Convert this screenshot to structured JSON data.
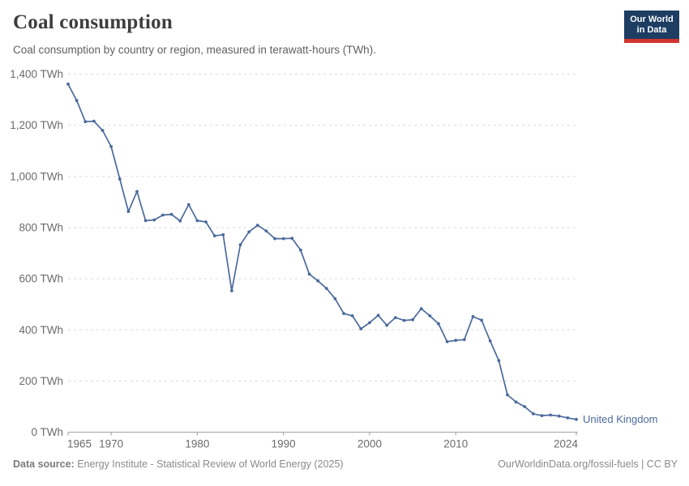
{
  "header": {
    "title": "Coal consumption",
    "subtitle": "Coal consumption by country or region, measured in terawatt-hours (TWh).",
    "logo_line1": "Our World",
    "logo_line2": "in Data"
  },
  "chart_data": {
    "type": "line",
    "title": "Coal consumption",
    "xlabel": "",
    "ylabel": "TWh",
    "xlim": [
      1965,
      2024
    ],
    "ylim": [
      0,
      1400
    ],
    "grid": "dashed-horizontal",
    "legend_position": "end-of-line",
    "yticks": [
      {
        "value": 0,
        "label": "0 TWh"
      },
      {
        "value": 200,
        "label": "200 TWh"
      },
      {
        "value": 400,
        "label": "400 TWh"
      },
      {
        "value": 600,
        "label": "600 TWh"
      },
      {
        "value": 800,
        "label": "800 TWh"
      },
      {
        "value": 1000,
        "label": "1,000 TWh"
      },
      {
        "value": 1200,
        "label": "1,200 TWh"
      },
      {
        "value": 1400,
        "label": "1,400 TWh"
      }
    ],
    "xticks": [
      {
        "value": 1965,
        "label": "1965"
      },
      {
        "value": 1970,
        "label": "1970"
      },
      {
        "value": 1980,
        "label": "1980"
      },
      {
        "value": 1990,
        "label": "1990"
      },
      {
        "value": 2000,
        "label": "2000"
      },
      {
        "value": 2010,
        "label": "2010"
      },
      {
        "value": 2024,
        "label": "2024"
      }
    ],
    "series": [
      {
        "name": "United Kingdom",
        "color": "#4c6a9c",
        "x": [
          1965,
          1966,
          1967,
          1968,
          1969,
          1970,
          1971,
          1972,
          1973,
          1974,
          1975,
          1976,
          1977,
          1978,
          1979,
          1980,
          1981,
          1982,
          1983,
          1984,
          1985,
          1986,
          1987,
          1988,
          1989,
          1990,
          1991,
          1992,
          1993,
          1994,
          1995,
          1996,
          1997,
          1998,
          1999,
          2000,
          2001,
          2002,
          2003,
          2004,
          2005,
          2006,
          2007,
          2008,
          2009,
          2010,
          2011,
          2012,
          2013,
          2014,
          2015,
          2016,
          2017,
          2018,
          2019,
          2020,
          2021,
          2022,
          2023,
          2024
        ],
        "values": [
          1361,
          1297,
          1214,
          1216,
          1180,
          1117,
          990,
          863,
          941,
          827,
          830,
          849,
          852,
          826,
          890,
          827,
          822,
          768,
          772,
          553,
          733,
          783,
          809,
          787,
          757,
          757,
          758,
          712,
          618,
          592,
          562,
          522,
          464,
          455,
          404,
          428,
          457,
          418,
          448,
          437,
          440,
          483,
          455,
          424,
          354,
          359,
          362,
          452,
          438,
          357,
          280,
          146,
          118,
          100,
          72,
          65,
          67,
          63,
          56,
          50
        ]
      }
    ]
  },
  "footer": {
    "datasource_label": "Data source:",
    "datasource_text": " Energy Institute - Statistical Review of World Energy (2025)",
    "credit": "OurWorldinData.org/fossil-fuels | CC BY"
  },
  "colors": {
    "line": "#4c6a9c",
    "grid": "#dadada",
    "axis": "#9e9e9e",
    "tick_text": "#6b6b6b",
    "logo_bg": "#1d3d63",
    "logo_red": "#cf352e"
  }
}
